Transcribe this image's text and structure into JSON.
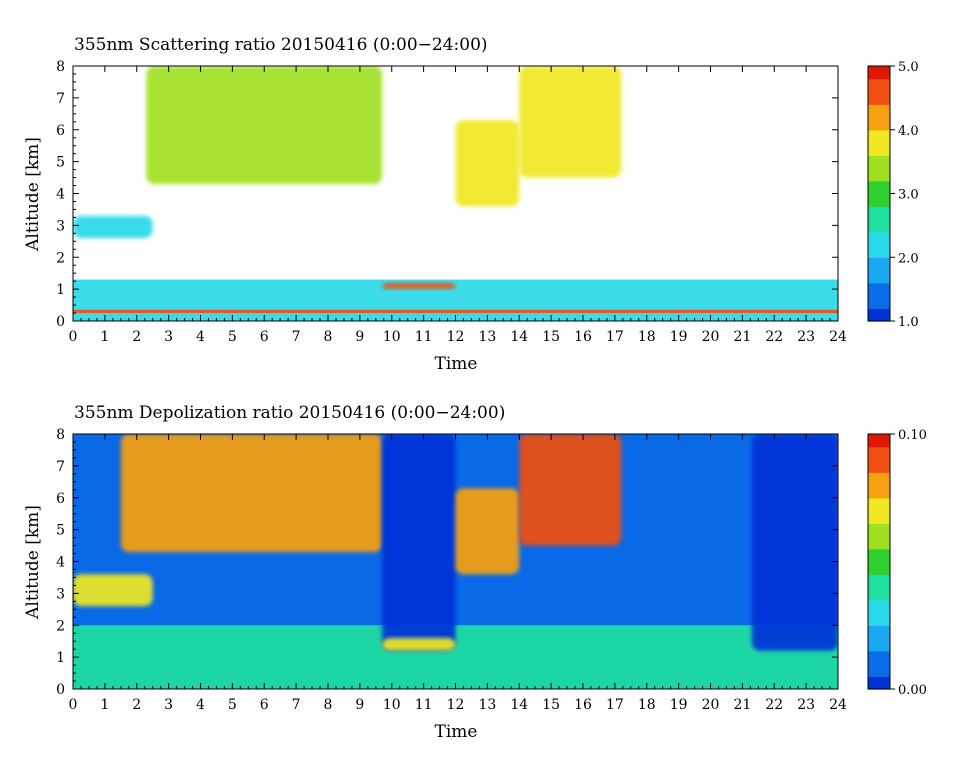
{
  "chart_data": [
    {
      "type": "heatmap",
      "title": "355nm Scattering ratio  20150416 (0:00−24:00)",
      "xlabel": "Time",
      "ylabel": "Altitude [km]",
      "xlim": [
        0,
        24
      ],
      "ylim": [
        0,
        8
      ],
      "xticks": [
        "0",
        "1",
        "2",
        "3",
        "4",
        "5",
        "6",
        "7",
        "8",
        "9",
        "10",
        "11",
        "12",
        "13",
        "14",
        "15",
        "16",
        "17",
        "18",
        "19",
        "20",
        "21",
        "22",
        "23",
        "24"
      ],
      "yticks": [
        "0",
        "1",
        "2",
        "3",
        "4",
        "5",
        "6",
        "7",
        "8"
      ],
      "colorbar": {
        "min": 1.0,
        "max": 5.0,
        "ticks": [
          "1.0",
          "2.0",
          "3.0",
          "4.0",
          "5.0"
        ],
        "colors": [
          "#0032d8",
          "#0a6ee8",
          "#1aa6f0",
          "#2ad8e8",
          "#20e0a0",
          "#30d030",
          "#a0e020",
          "#f0e820",
          "#f8a010",
          "#f05010",
          "#e01808"
        ]
      },
      "features": [
        {
          "t0": 0,
          "t1": 24,
          "z0": 0.0,
          "z1": 1.3,
          "value": 2.0
        },
        {
          "t0": 0,
          "t1": 24,
          "z0": 0.25,
          "z1": 0.35,
          "value": 4.5
        },
        {
          "t0": 9.7,
          "t1": 12,
          "z0": 1.0,
          "z1": 1.2,
          "value": 4.5
        },
        {
          "t0": 0,
          "t1": 2.5,
          "z0": 2.6,
          "z1": 3.3,
          "value": 2.2
        },
        {
          "t0": 2.3,
          "t1": 9.7,
          "z0": 4.3,
          "z1": 8.0,
          "value": 3.5
        },
        {
          "t0": 12.0,
          "t1": 14.0,
          "z0": 3.6,
          "z1": 6.3,
          "value": 3.8
        },
        {
          "t0": 14.0,
          "t1": 17.2,
          "z0": 4.5,
          "z1": 8.0,
          "value": 3.8
        }
      ]
    },
    {
      "type": "heatmap",
      "title": "355nm Depolization ratio  20150416 (0:00−24:00)",
      "xlabel": "Time",
      "ylabel": "Altitude [km]",
      "xlim": [
        0,
        24
      ],
      "ylim": [
        0,
        8
      ],
      "xticks": [
        "0",
        "1",
        "2",
        "3",
        "4",
        "5",
        "6",
        "7",
        "8",
        "9",
        "10",
        "11",
        "12",
        "13",
        "14",
        "15",
        "16",
        "17",
        "18",
        "19",
        "20",
        "21",
        "22",
        "23",
        "24"
      ],
      "yticks": [
        "0",
        "1",
        "2",
        "3",
        "4",
        "5",
        "6",
        "7",
        "8"
      ],
      "colorbar": {
        "min": 0.0,
        "max": 0.1,
        "ticks": [
          "0.00",
          "0.10"
        ],
        "colors": [
          "#0032d8",
          "#0a6ee8",
          "#1aa6f0",
          "#2ad8e8",
          "#20e0a0",
          "#30d030",
          "#a0e020",
          "#f0e820",
          "#f8a010",
          "#f05010",
          "#e01808"
        ]
      },
      "features": [
        {
          "t0": 0,
          "t1": 24,
          "z0": 0.0,
          "z1": 8.0,
          "value": 0.01
        },
        {
          "t0": 0,
          "t1": 24,
          "z0": 0.0,
          "z1": 2.0,
          "value": 0.035
        },
        {
          "t0": 0,
          "t1": 2.5,
          "z0": 2.6,
          "z1": 3.6,
          "value": 0.065
        },
        {
          "t0": 1.5,
          "t1": 9.7,
          "z0": 4.3,
          "z1": 8.0,
          "value": 0.08
        },
        {
          "t0": 9.7,
          "t1": 12.0,
          "z0": 1.2,
          "z1": 8.0,
          "value": 0.005
        },
        {
          "t0": 9.7,
          "t1": 12.0,
          "z0": 1.2,
          "z1": 1.6,
          "value": 0.075
        },
        {
          "t0": 12.0,
          "t1": 14.0,
          "z0": 3.6,
          "z1": 6.3,
          "value": 0.08
        },
        {
          "t0": 14.0,
          "t1": 17.2,
          "z0": 4.5,
          "z1": 8.0,
          "value": 0.085
        },
        {
          "t0": 21.3,
          "t1": 24,
          "z0": 1.2,
          "z1": 8.0,
          "value": 0.005
        }
      ]
    }
  ]
}
